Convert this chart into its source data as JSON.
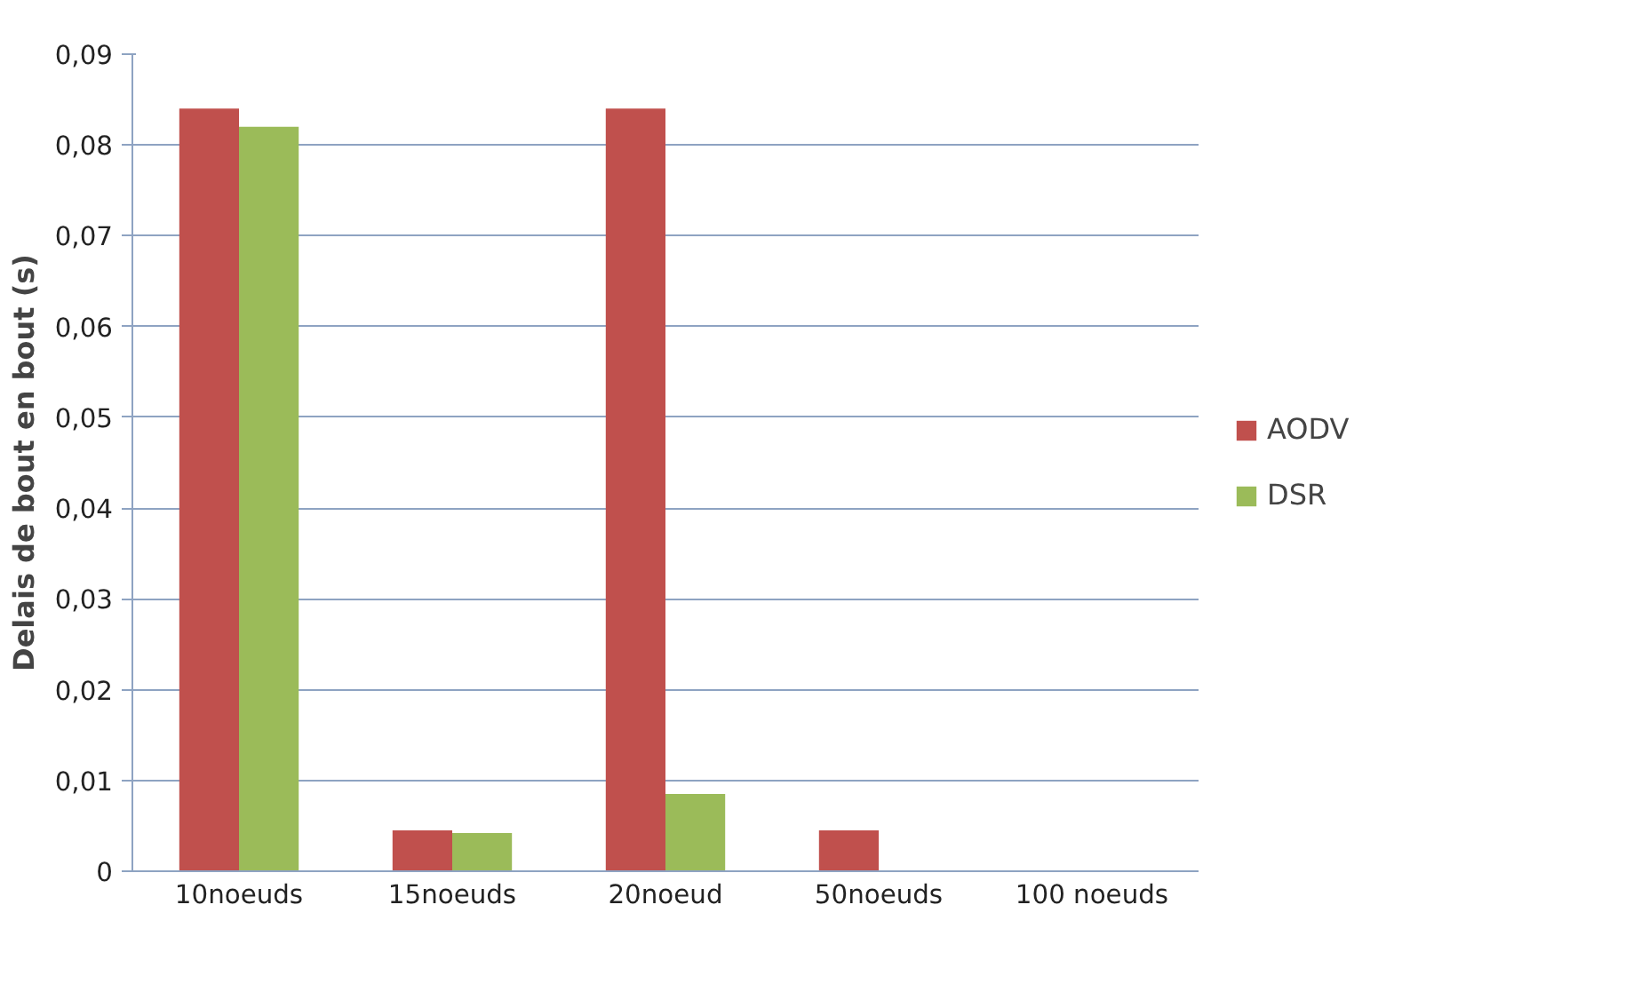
{
  "chart_data": {
    "type": "bar",
    "ylabel": "Delais de bout en bout (s)",
    "categories": [
      "10noeuds",
      "15noeuds",
      "20noeud",
      "50noeuds",
      "100 noeuds"
    ],
    "series": [
      {
        "name": "AODV",
        "color": "#c0504d",
        "values": [
          0.084,
          0.0045,
          0.084,
          0.0045,
          0
        ]
      },
      {
        "name": "DSR",
        "color": "#9bbb59",
        "values": [
          0.082,
          0.0042,
          0.0085,
          0,
          0
        ]
      }
    ],
    "ylim": [
      0,
      0.09
    ],
    "yticks": [
      {
        "value": 0,
        "label": "0"
      },
      {
        "value": 0.01,
        "label": "0,01"
      },
      {
        "value": 0.02,
        "label": "0,02"
      },
      {
        "value": 0.03,
        "label": "0,03"
      },
      {
        "value": 0.04,
        "label": "0,04"
      },
      {
        "value": 0.05,
        "label": "0,05"
      },
      {
        "value": 0.06,
        "label": "0,06"
      },
      {
        "value": 0.07,
        "label": "0,07"
      },
      {
        "value": 0.08,
        "label": "0,08"
      },
      {
        "value": 0.09,
        "label": "0,09"
      }
    ],
    "grid": "y",
    "legend": "right"
  }
}
